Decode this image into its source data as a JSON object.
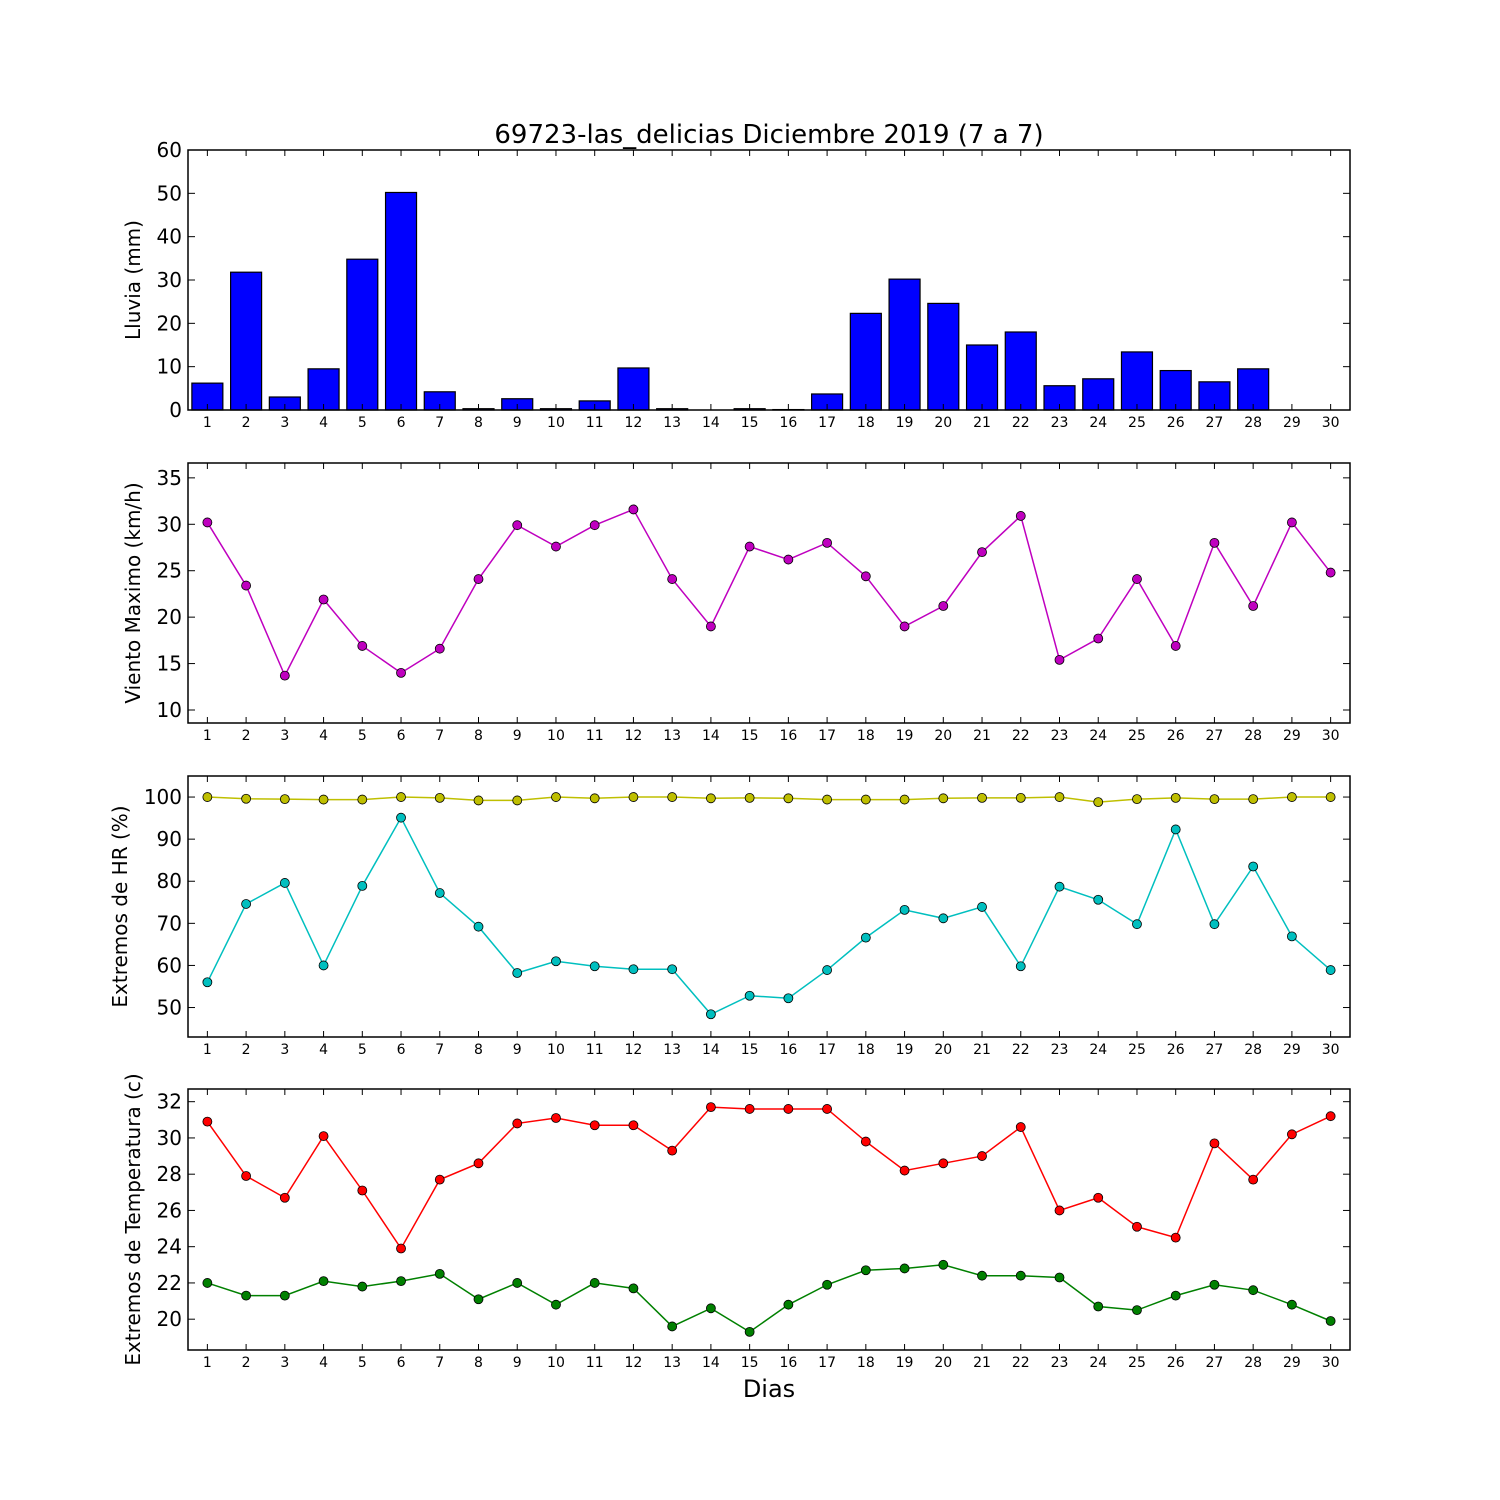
{
  "title": "69723-las_delicias Diciembre 2019  (7 a 7)",
  "xlabel": "Dias",
  "chart_data": [
    {
      "type": "bar",
      "ylabel": "Lluvia (mm)",
      "x": [
        1,
        2,
        3,
        4,
        5,
        6,
        7,
        8,
        9,
        10,
        11,
        12,
        13,
        14,
        15,
        16,
        17,
        18,
        19,
        20,
        21,
        22,
        23,
        24,
        25,
        26,
        27,
        28,
        29,
        30
      ],
      "ylim": [
        0,
        60
      ],
      "yticks": [
        0,
        10,
        20,
        30,
        40,
        50,
        60
      ],
      "grid": false,
      "series": [
        {
          "color": "#0000ff",
          "values": [
            6.2,
            31.8,
            3.0,
            9.5,
            34.8,
            50.2,
            4.2,
            0.3,
            2.6,
            0.3,
            2.1,
            9.7,
            0.3,
            0,
            0.3,
            0.1,
            3.7,
            22.3,
            30.2,
            24.6,
            15.0,
            18.0,
            5.6,
            7.2,
            13.4,
            9.1,
            6.5,
            9.5,
            0,
            0
          ]
        }
      ]
    },
    {
      "type": "line",
      "ylabel": "Viento Maximo (km/h)",
      "x": [
        1,
        2,
        3,
        4,
        5,
        6,
        7,
        8,
        9,
        10,
        11,
        12,
        13,
        14,
        15,
        16,
        17,
        18,
        19,
        20,
        21,
        22,
        23,
        24,
        25,
        26,
        27,
        28,
        29,
        30
      ],
      "ylim": [
        8.6,
        36.6
      ],
      "yticks": [
        10,
        15,
        20,
        25,
        30,
        35
      ],
      "grid": false,
      "series": [
        {
          "color": "#bf00bf",
          "values": [
            30.2,
            23.4,
            13.7,
            21.9,
            16.9,
            14.0,
            16.6,
            24.1,
            29.9,
            27.6,
            29.9,
            31.6,
            24.1,
            19.0,
            27.6,
            26.2,
            28.0,
            24.4,
            19.0,
            21.2,
            27.0,
            30.9,
            15.4,
            17.7,
            24.1,
            16.9,
            28.0,
            21.2,
            30.2,
            24.8
          ]
        }
      ]
    },
    {
      "type": "line",
      "ylabel": "Extremos de HR (%)",
      "x": [
        1,
        2,
        3,
        4,
        5,
        6,
        7,
        8,
        9,
        10,
        11,
        12,
        13,
        14,
        15,
        16,
        17,
        18,
        19,
        20,
        21,
        22,
        23,
        24,
        25,
        26,
        27,
        28,
        29,
        30
      ],
      "ylim": [
        43,
        105
      ],
      "yticks": [
        50,
        60,
        70,
        80,
        90,
        100
      ],
      "grid": false,
      "series": [
        {
          "color": "#bfbf00",
          "values": [
            100,
            99.6,
            99.5,
            99.4,
            99.4,
            100,
            99.8,
            99.2,
            99.2,
            100,
            99.7,
            100,
            100,
            99.7,
            99.8,
            99.7,
            99.4,
            99.4,
            99.4,
            99.7,
            99.8,
            99.8,
            100,
            98.8,
            99.5,
            99.8,
            99.5,
            99.5,
            100,
            100
          ]
        },
        {
          "color": "#00bfbf",
          "values": [
            56,
            74.6,
            79.6,
            60,
            78.9,
            95.1,
            77.2,
            69.2,
            58.2,
            61,
            59.8,
            59.1,
            59.1,
            48.4,
            52.8,
            52.2,
            58.9,
            66.6,
            73.2,
            71.2,
            73.9,
            59.8,
            78.7,
            75.6,
            69.8,
            92.3,
            69.8,
            83.5,
            66.9,
            58.9
          ]
        }
      ]
    },
    {
      "type": "line",
      "ylabel": "Extremos de Temperatura (c)",
      "x": [
        1,
        2,
        3,
        4,
        5,
        6,
        7,
        8,
        9,
        10,
        11,
        12,
        13,
        14,
        15,
        16,
        17,
        18,
        19,
        20,
        21,
        22,
        23,
        24,
        25,
        26,
        27,
        28,
        29,
        30
      ],
      "ylim": [
        18.3,
        32.7
      ],
      "yticks": [
        20,
        22,
        24,
        26,
        28,
        30,
        32
      ],
      "grid": false,
      "series": [
        {
          "color": "#ff0000",
          "values": [
            30.9,
            27.9,
            26.7,
            30.1,
            27.1,
            23.9,
            27.7,
            28.6,
            30.8,
            31.1,
            30.7,
            30.7,
            29.3,
            31.7,
            31.6,
            31.6,
            31.6,
            29.8,
            28.2,
            28.6,
            29.0,
            30.6,
            26.0,
            26.7,
            25.1,
            24.5,
            29.7,
            27.7,
            30.2,
            31.2
          ]
        },
        {
          "color": "#008000",
          "values": [
            22.0,
            21.3,
            21.3,
            22.1,
            21.8,
            22.1,
            22.5,
            21.1,
            22.0,
            20.8,
            22.0,
            21.7,
            19.6,
            20.6,
            19.3,
            20.8,
            21.9,
            22.7,
            22.8,
            23.0,
            22.4,
            22.4,
            22.3,
            20.7,
            20.5,
            21.3,
            21.9,
            21.6,
            20.8,
            19.9
          ]
        }
      ]
    }
  ]
}
